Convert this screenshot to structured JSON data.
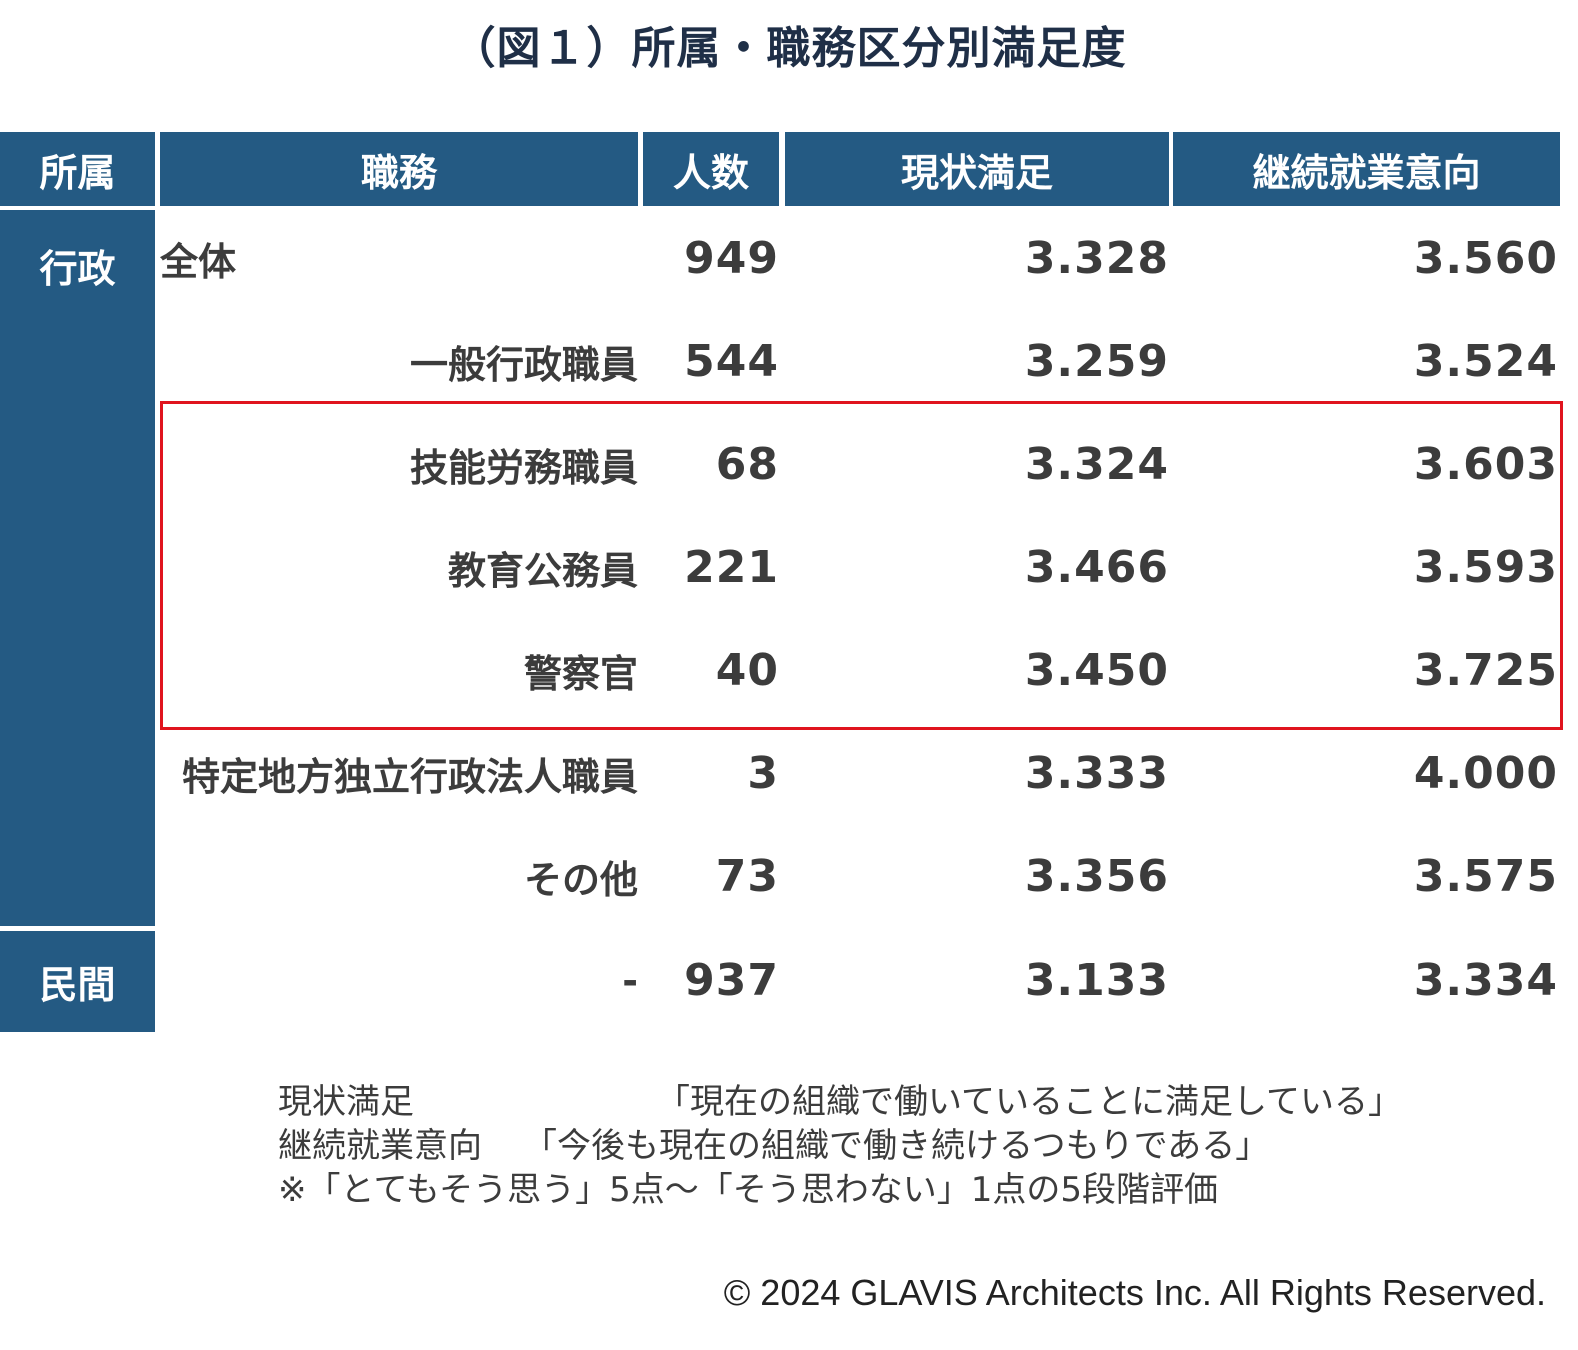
{
  "title": "（図１）所属・職務区分別満足度",
  "colors": {
    "header_bg": "#245a83",
    "highlight_border": "#e0141e"
  },
  "chart_data": {
    "type": "table",
    "columns": [
      "所属",
      "職務",
      "人数",
      "現状満足",
      "継続就業意向"
    ],
    "groups": [
      {
        "affiliation": "行政",
        "rows": [
          {
            "job": "全体",
            "count": "949",
            "current_satisfaction": "3.328",
            "continuation_intent": "3.560"
          },
          {
            "job": "一般行政職員",
            "count": "544",
            "current_satisfaction": "3.259",
            "continuation_intent": "3.524"
          },
          {
            "job": "技能労務職員",
            "count": "68",
            "current_satisfaction": "3.324",
            "continuation_intent": "3.603",
            "highlighted": true
          },
          {
            "job": "教育公務員",
            "count": "221",
            "current_satisfaction": "3.466",
            "continuation_intent": "3.593",
            "highlighted": true
          },
          {
            "job": "警察官",
            "count": "40",
            "current_satisfaction": "3.450",
            "continuation_intent": "3.725",
            "highlighted": true
          },
          {
            "job": "特定地方独立行政法人職員",
            "count": "3",
            "current_satisfaction": "3.333",
            "continuation_intent": "4.000"
          },
          {
            "job": "その他",
            "count": "73",
            "current_satisfaction": "3.356",
            "continuation_intent": "3.575"
          }
        ]
      },
      {
        "affiliation": "民間",
        "rows": [
          {
            "job": "-",
            "count": "937",
            "current_satisfaction": "3.133",
            "continuation_intent": "3.334"
          }
        ]
      }
    ]
  },
  "notes": [
    {
      "term": "現状満足",
      "text": "「現在の組織で働いていることに満足している」"
    },
    {
      "term": "継続就業意向",
      "text": "「今後も現在の組織で働き続けるつもりである」"
    },
    {
      "term": "",
      "text": "※「とてもそう思う」5点～「そう思わない」1点の5段階評価"
    }
  ],
  "copyright": "© 2024  GLAVIS Architects Inc. All Rights Reserved."
}
